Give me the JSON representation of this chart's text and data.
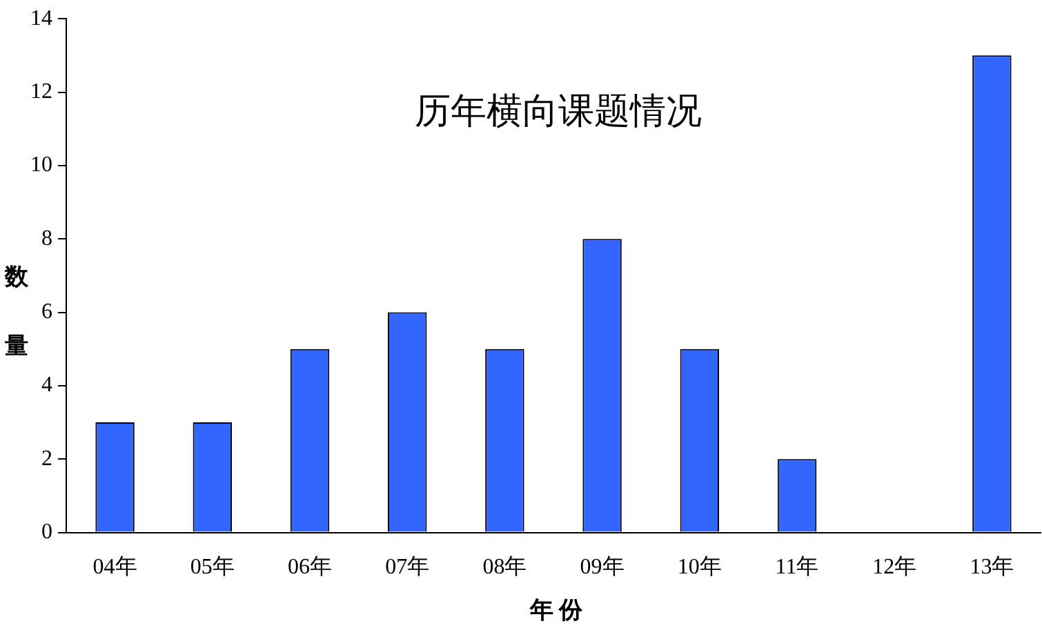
{
  "chart_data": {
    "type": "bar",
    "title": "历年横向课题情况",
    "xlabel": "年 份",
    "ylabel": "数量",
    "categories": [
      "04年",
      "05年",
      "06年",
      "07年",
      "08年",
      "09年",
      "10年",
      "11年",
      "12年",
      "13年"
    ],
    "series": [
      {
        "color": "#3366ff",
        "values": [
          3,
          3,
          5,
          6,
          5,
          8,
          5,
          2,
          0,
          13
        ]
      }
    ],
    "ylim": [
      0,
      14
    ],
    "yticks": [
      0,
      2,
      4,
      6,
      8,
      10,
      12,
      14
    ]
  }
}
